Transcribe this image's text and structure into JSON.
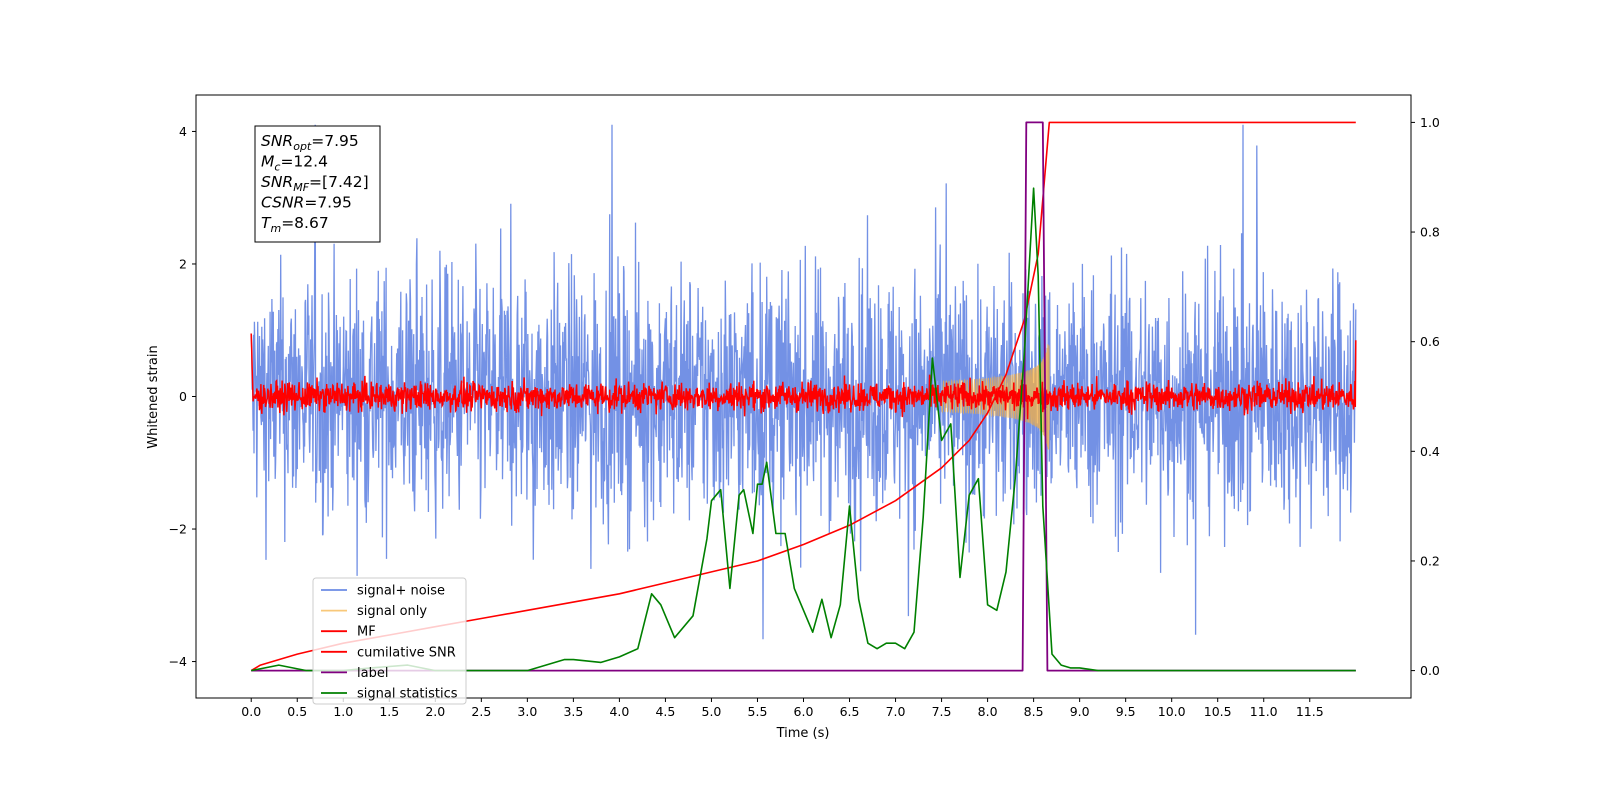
{
  "chart_data": {
    "type": "line",
    "xlabel": "Time (s)",
    "ylabel": "Whitened strain",
    "xlim": [
      -0.6,
      12.6
    ],
    "ylim_left": [
      -4.55,
      4.55
    ],
    "ylim_right": [
      -0.05,
      1.05
    ],
    "x_ticks": [
      0.0,
      0.5,
      1.0,
      1.5,
      2.0,
      2.5,
      3.0,
      3.5,
      4.0,
      4.5,
      5.0,
      5.5,
      6.0,
      6.5,
      7.0,
      7.5,
      8.0,
      8.5,
      9.0,
      9.5,
      10.0,
      10.5,
      11.0,
      11.5
    ],
    "x_tick_labels": [
      "0.0",
      "0.5",
      "1.0",
      "1.5",
      "2.0",
      "2.5",
      "3.0",
      "3.5",
      "4.0",
      "4.5",
      "5.0",
      "5.5",
      "6.0",
      "6.5",
      "7.0",
      "7.5",
      "8.0",
      "8.5",
      "9.0",
      "9.5",
      "10.0",
      "10.5",
      "11.0",
      "11.5"
    ],
    "y_left_ticks": [
      -4,
      -2,
      0,
      2,
      4
    ],
    "y_left_tick_labels": [
      "−4",
      "−2",
      "0",
      "2",
      "4"
    ],
    "y_right_ticks": [
      0.0,
      0.2,
      0.4,
      0.6,
      0.8,
      1.0
    ],
    "y_right_tick_labels": [
      "0.0",
      "0.2",
      "0.4",
      "0.6",
      "0.8",
      "1.0"
    ],
    "grid": false,
    "legend_position": "lower-left",
    "annotation": {
      "snr_opt": {
        "sym": "SNR",
        "sub": "opt",
        "value": "=7.95"
      },
      "mc": {
        "sym": "M",
        "sub": "c",
        "value": "=12.4"
      },
      "snr_mf": {
        "sym": "SNR",
        "sub": "MF",
        "value": "=[7.42]"
      },
      "csnr": {
        "sym": "CSNR",
        "sub": "",
        "value": "=7.95"
      },
      "tm": {
        "sym": "T",
        "sub": "m",
        "value": "=8.67"
      }
    },
    "series": [
      {
        "name": "signal+ noise",
        "color": "#6b8be4",
        "axis": "left",
        "kind": "noise",
        "x_range": [
          0.0,
          12.0
        ],
        "amplitude_approx": 2.7
      },
      {
        "name": "signal only",
        "color": "#f5b041",
        "axis": "left",
        "kind": "chirp",
        "x_range": [
          7.5,
          8.67
        ],
        "peak_amplitude": 0.7
      },
      {
        "name": "MF",
        "color": "#ff0000",
        "axis": "left",
        "kind": "noise",
        "x_range": [
          0.0,
          12.0
        ],
        "amplitude_approx": 0.3
      },
      {
        "name": "cumilative SNR",
        "color": "#ff0000",
        "axis": "right",
        "x": [
          0.0,
          0.1,
          0.5,
          1.0,
          1.5,
          2.0,
          2.5,
          3.0,
          3.5,
          4.0,
          4.5,
          5.0,
          5.5,
          6.0,
          6.5,
          7.0,
          7.5,
          7.8,
          8.0,
          8.2,
          8.4,
          8.55,
          8.67,
          9.0,
          10.0,
          11.0,
          12.0
        ],
        "y": [
          0.0,
          0.01,
          0.03,
          0.05,
          0.065,
          0.08,
          0.095,
          0.11,
          0.125,
          0.14,
          0.16,
          0.18,
          0.2,
          0.23,
          0.265,
          0.31,
          0.37,
          0.42,
          0.47,
          0.54,
          0.64,
          0.76,
          1.0,
          1.0,
          1.0,
          1.0,
          1.0
        ]
      },
      {
        "name": "label",
        "color": "#800080",
        "axis": "right",
        "x": [
          0.0,
          8.38,
          8.42,
          8.6,
          8.65,
          12.0
        ],
        "y": [
          0.0,
          0.0,
          1.0,
          1.0,
          0.0,
          0.0
        ]
      },
      {
        "name": "signal statistics",
        "color": "#008000",
        "axis": "right",
        "x": [
          0.0,
          0.3,
          0.6,
          1.0,
          1.3,
          1.7,
          2.0,
          2.5,
          3.0,
          3.2,
          3.4,
          3.5,
          3.8,
          4.0,
          4.2,
          4.35,
          4.45,
          4.6,
          4.8,
          4.95,
          5.0,
          5.1,
          5.2,
          5.3,
          5.35,
          5.45,
          5.5,
          5.55,
          5.6,
          5.7,
          5.8,
          5.9,
          6.0,
          6.1,
          6.2,
          6.3,
          6.4,
          6.5,
          6.6,
          6.7,
          6.8,
          6.9,
          7.0,
          7.1,
          7.2,
          7.3,
          7.4,
          7.5,
          7.6,
          7.7,
          7.8,
          7.9,
          8.0,
          8.1,
          8.2,
          8.3,
          8.4,
          8.5,
          8.55,
          8.6,
          8.7,
          8.8,
          8.9,
          9.0,
          9.2,
          9.3,
          9.5,
          10.0,
          11.0,
          12.0
        ],
        "y": [
          0.0,
          0.01,
          0.0,
          0.0,
          0.005,
          0.01,
          0.0,
          0.0,
          0.0,
          0.01,
          0.02,
          0.02,
          0.015,
          0.025,
          0.04,
          0.14,
          0.12,
          0.06,
          0.1,
          0.24,
          0.31,
          0.33,
          0.15,
          0.32,
          0.33,
          0.25,
          0.34,
          0.34,
          0.38,
          0.25,
          0.25,
          0.15,
          0.11,
          0.07,
          0.13,
          0.06,
          0.12,
          0.3,
          0.13,
          0.05,
          0.04,
          0.05,
          0.05,
          0.04,
          0.07,
          0.28,
          0.57,
          0.42,
          0.45,
          0.17,
          0.32,
          0.35,
          0.12,
          0.11,
          0.18,
          0.35,
          0.58,
          0.88,
          0.72,
          0.3,
          0.03,
          0.01,
          0.005,
          0.005,
          0.0,
          0.0,
          0.0,
          0.0,
          0.0,
          0.0
        ]
      }
    ]
  }
}
